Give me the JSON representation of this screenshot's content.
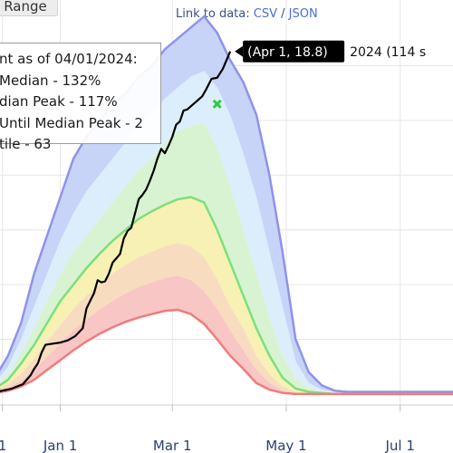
{
  "range_button": {
    "label": "Range"
  },
  "links": {
    "prefix": "Link to data:",
    "csv": "CSV",
    "separator": "/",
    "json": "JSON"
  },
  "stats_box": {
    "lines": [
      "nt as of 04/01/2024:",
      "Median - 132%",
      "dian Peak - 117%",
      "Until Median Peak - 2",
      "tile - 63"
    ]
  },
  "tooltip": {
    "label": "(Apr  1, 18.8)"
  },
  "series_label": {
    "text": "2024 (114 s"
  },
  "colors": {
    "max_band": "#c7d4f8",
    "band_blue_light": "#dceefb",
    "band_green": "#d8f3d2",
    "band_yellow": "#f7f1b4",
    "band_orange": "#f8dcc0",
    "band_red": "#f8c6c4",
    "max_line": "#8f93ea",
    "median_line": "#7be07b",
    "min_line": "#f07b7b",
    "current_line": "#000000",
    "peak_marker": "#2ecc40",
    "grid": "#e6e6e6"
  },
  "chart_data": {
    "type": "area",
    "x_ticks": [
      "1",
      "Jan 1",
      "Mar 1",
      "May 1",
      "Jul 1",
      "1"
    ],
    "x_tick_days": [
      -31,
      0,
      60,
      121,
      182,
      213
    ],
    "xlim": [
      -42,
      220
    ],
    "ylim": [
      -1,
      36
    ],
    "x": [
      -42,
      -35,
      -28,
      -21,
      -14,
      -7,
      0,
      7,
      14,
      21,
      28,
      35,
      42,
      49,
      56,
      63,
      70,
      77,
      84,
      91,
      98,
      105,
      112,
      119,
      126,
      133,
      140,
      147,
      154,
      161,
      168,
      175,
      182,
      189,
      196,
      203,
      210,
      220
    ],
    "series": [
      {
        "role": "max",
        "values": [
          0.3,
          1.5,
          3.5,
          6.5,
          11,
          14.5,
          18,
          21.5,
          23.5,
          25,
          26.5,
          27.5,
          29,
          30,
          31.5,
          32.5,
          33.5,
          34.5,
          33,
          30.5,
          28.5,
          25.5,
          20,
          13,
          5,
          2,
          0.8,
          0.3,
          0.2,
          0.2,
          0.2,
          0.2,
          0.2,
          0.2,
          0.2,
          0.2,
          0.2,
          0.2
        ]
      },
      {
        "role": "p90",
        "values": [
          0.2,
          1,
          2.5,
          5,
          8,
          11,
          14,
          16.5,
          18.5,
          20,
          21.5,
          23,
          24.5,
          25.5,
          27,
          28,
          29,
          29.5,
          28,
          25.5,
          22,
          18,
          13,
          8,
          3,
          1,
          0.4,
          0.2,
          0.1,
          0.1,
          0.1,
          0.1,
          0.1,
          0.1,
          0.1,
          0.1,
          0.1,
          0.1
        ]
      },
      {
        "role": "p75",
        "values": [
          0.1,
          0.7,
          1.8,
          3.8,
          6,
          8.5,
          11,
          13,
          14.5,
          16,
          17.5,
          19,
          20.5,
          21.5,
          23,
          24,
          24.5,
          24.8,
          22.5,
          19,
          15,
          11,
          7,
          3.5,
          1.5,
          0.5,
          0.2,
          0.1,
          0,
          0,
          0,
          0,
          0,
          0,
          0,
          0,
          0,
          0
        ]
      },
      {
        "role": "median",
        "values": [
          0.05,
          0.5,
          1.3,
          2.8,
          4.5,
          6.5,
          8.5,
          10,
          11.5,
          12.8,
          14,
          15,
          16,
          16.7,
          17.3,
          17.8,
          18,
          17.5,
          15,
          12,
          9,
          6,
          3.5,
          1.5,
          0.5,
          0.2,
          0.1,
          0,
          0,
          0,
          0,
          0,
          0,
          0,
          0,
          0,
          0,
          0
        ]
      },
      {
        "role": "p25",
        "values": [
          0,
          0.3,
          0.9,
          1.9,
          3.2,
          4.8,
          6.3,
          7.8,
          9,
          10,
          11,
          11.8,
          12.5,
          13,
          13.5,
          13.8,
          13.5,
          12.5,
          10.5,
          8,
          6,
          3.5,
          1.8,
          0.7,
          0.2,
          0.1,
          0,
          0,
          0,
          0,
          0,
          0,
          0,
          0,
          0,
          0,
          0,
          0
        ]
      },
      {
        "role": "p10",
        "values": [
          0,
          0.2,
          0.6,
          1.2,
          2.2,
          3.4,
          4.6,
          5.8,
          6.8,
          7.7,
          8.5,
          9.2,
          9.8,
          10.2,
          10.6,
          10.8,
          10.4,
          9.4,
          7.8,
          5.8,
          4,
          2.2,
          1,
          0.3,
          0.1,
          0,
          0,
          0,
          0,
          0,
          0,
          0,
          0,
          0,
          0,
          0,
          0,
          0
        ]
      },
      {
        "role": "min",
        "values": [
          0,
          0.1,
          0.3,
          0.7,
          1.3,
          2.2,
          3.1,
          4,
          4.8,
          5.5,
          6.1,
          6.6,
          7,
          7.3,
          7.6,
          7.7,
          7.3,
          6.4,
          5,
          3.5,
          2.3,
          1,
          0.4,
          0.1,
          0,
          0,
          0,
          0,
          0,
          0,
          0,
          0,
          0,
          0,
          0,
          0,
          0,
          0
        ]
      }
    ],
    "current_series": {
      "name": "2024 (114 s",
      "x": [
        -42,
        -34,
        -26,
        -20,
        -16,
        -14,
        -12,
        -10,
        -8,
        -4,
        0,
        4,
        8,
        12,
        14,
        16,
        18,
        20,
        22,
        24,
        26,
        28,
        30,
        32,
        34,
        36,
        38,
        40,
        42,
        44,
        46,
        48,
        50,
        52,
        54,
        56,
        58,
        60,
        62,
        64,
        66,
        68,
        70,
        72,
        74,
        76,
        78,
        81,
        84,
        87,
        89,
        91
      ],
      "values": [
        0,
        0.2,
        0.5,
        0.9,
        1.7,
        2.3,
        2.8,
        3.8,
        4.5,
        4.6,
        4.7,
        4.9,
        5.3,
        6,
        7.8,
        8.5,
        9.2,
        10.4,
        10.2,
        10.3,
        11,
        12,
        12.4,
        12.8,
        14.2,
        14.9,
        15.2,
        16.5,
        17.8,
        18.2,
        18.7,
        19.5,
        20.4,
        21.5,
        22.4,
        22,
        22.7,
        23.5,
        24.6,
        24.9,
        25.9,
        26,
        26.3,
        26.6,
        26.9,
        27.2,
        27.8,
        28.8,
        28.9,
        29.7,
        30.5,
        31.3
      ]
    },
    "median_peak": {
      "x": 84,
      "y": 26.5
    }
  }
}
